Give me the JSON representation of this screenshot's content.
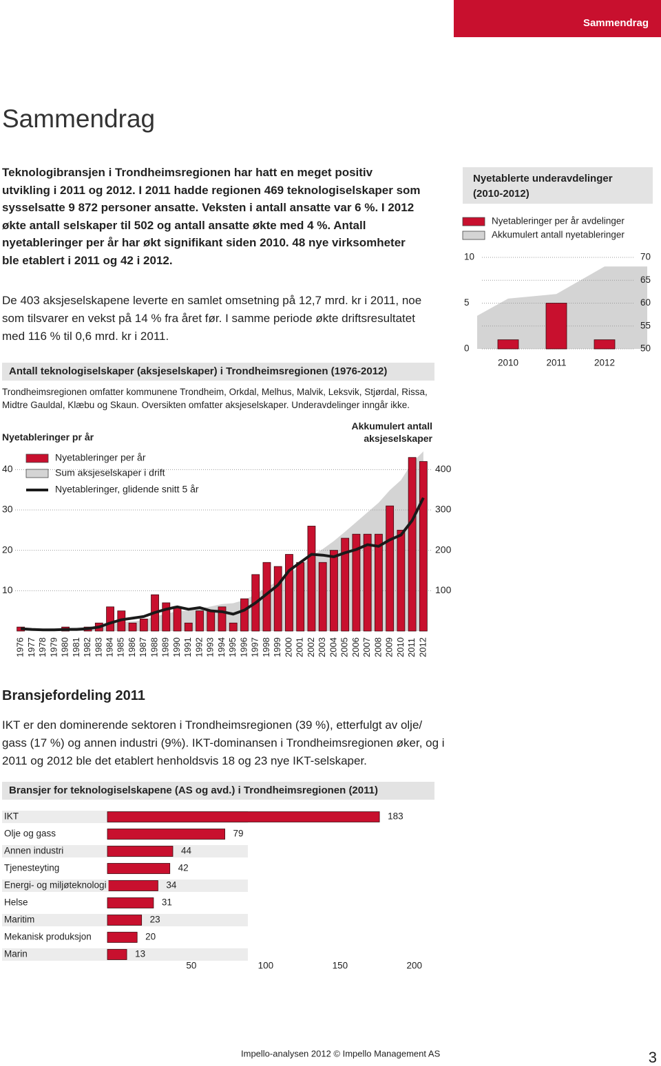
{
  "header": {
    "tab": "Sammendrag"
  },
  "title": "Sammendrag",
  "intro": "Teknologibransjen i Trondheimsregionen har hatt en meget positiv utvikling i 2011 og 2012. I 2011 hadde regionen 469 teknologiselskaper som sysselsatte 9 872 personer ansatte. Veksten i antall ansatte var 6 %. I 2012 økte antall selskaper til 502 og antall ansatte økte med 4 %. Antall nyetableringer per år har økt signifikant siden 2010. 48 nye virksomheter ble etablert i 2011 og 42 i 2012.",
  "paragraph": "De 403 aksjeselskapene leverte en samlet omsetning på 12,7 mrd. kr i 2011, noe som tilsvarer en vekst på 14 % fra året før. I samme periode økte driftsresultatet med 116 % til 0,6 mrd. kr i 2011.",
  "chart_data": [
    {
      "type": "combo",
      "title": "Antall teknologiselskaper (aksjeselskaper) i Trondheimsregionen (1976-2012)",
      "note": "Trondheimsregionen omfatter kommunene Trondheim, Orkdal, Melhus, Malvik, Leksvik, Stjørdal, Rissa, Midtre Gauldal, Klæbu og Skaun. Oversikten omfatter aksjeselskaper. Underavdelinger inngår ikke.",
      "ylabel": "Nyetableringer pr år",
      "y2label": "Akkumulert antall aksjeselskaper",
      "categories": [
        "1976",
        "1977",
        "1978",
        "1979",
        "1980",
        "1981",
        "1982",
        "1983",
        "1984",
        "1985",
        "1986",
        "1987",
        "1988",
        "1989",
        "1990",
        "1991",
        "1992",
        "1993",
        "1994",
        "1995",
        "1996",
        "1997",
        "1998",
        "1999",
        "2000",
        "2001",
        "2002",
        "2003",
        "2004",
        "2005",
        "2006",
        "2007",
        "2008",
        "2009",
        "2010",
        "2011",
        "2012"
      ],
      "series": [
        {
          "name": "Nyetableringer per år",
          "type": "bar",
          "color": "#c8102e",
          "values": [
            1,
            0,
            0,
            0,
            1,
            0,
            1,
            2,
            6,
            5,
            2,
            3,
            9,
            7,
            6,
            2,
            5,
            5,
            6,
            2,
            8,
            14,
            17,
            16,
            19,
            17,
            26,
            17,
            20,
            23,
            24,
            24,
            24,
            31,
            25,
            43,
            42
          ]
        },
        {
          "name": "Sum aksjeselskaper i drift",
          "type": "area",
          "axis": "y2",
          "color": "#d4d4d4",
          "values": [
            4,
            5,
            6,
            7,
            8,
            9,
            10,
            12,
            17,
            22,
            24,
            27,
            36,
            43,
            49,
            51,
            56,
            61,
            67,
            69,
            77,
            91,
            108,
            124,
            143,
            160,
            186,
            203,
            223,
            246,
            270,
            294,
            318,
            349,
            374,
            417,
            445
          ]
        },
        {
          "name": "Nyetableringer, glidende snitt 5 år",
          "type": "line",
          "color": "#1a1a1a",
          "values": [
            0.6,
            0.4,
            0.3,
            0.3,
            0.4,
            0.4,
            0.6,
            1,
            2,
            2.8,
            3.2,
            3.6,
            4.6,
            5.4,
            6,
            5.4,
            5.8,
            5,
            4.8,
            4.2,
            5.2,
            7,
            9.2,
            11.4,
            15,
            17,
            19,
            18.8,
            18.4,
            19.4,
            20.2,
            21.4,
            21,
            22.6,
            23.8,
            27.4,
            33
          ]
        }
      ],
      "ylim": [
        0,
        45
      ],
      "yticks": [
        10,
        20,
        30,
        40
      ],
      "y2lim": [
        0,
        450
      ],
      "y2ticks": [
        100,
        200,
        300,
        400
      ],
      "grid": true
    },
    {
      "type": "combo",
      "title": "Nyetablerte underavdelinger (2010-2012)",
      "categories": [
        "2010",
        "2011",
        "2012"
      ],
      "series": [
        {
          "name": "Nyetableringer per år avdelinger",
          "type": "bar",
          "color": "#c8102e",
          "values": [
            1,
            5,
            1
          ]
        },
        {
          "name": "Akkumulert antall nyetableringer",
          "type": "area",
          "axis": "y2",
          "color": "#d4d4d4",
          "values": [
            61,
            62,
            68
          ]
        }
      ],
      "ylim": [
        0,
        10
      ],
      "yticks": [
        0,
        5,
        10
      ],
      "y2lim": [
        50,
        70
      ],
      "y2ticks": [
        50,
        55,
        60,
        65,
        70
      ],
      "grid": true
    },
    {
      "type": "hbar",
      "title": "Bransjer for teknologiselskapene (AS og avd.) i Trondheimsregionen (2011)",
      "categories": [
        "IKT",
        "Olje og gass",
        "Annen industri",
        "Tjenesteyting",
        "Energi- og miljøteknologi",
        "Helse",
        "Maritim",
        "Mekanisk produksjon",
        "Marin"
      ],
      "values": [
        183,
        79,
        44,
        42,
        34,
        31,
        23,
        20,
        13
      ],
      "color": "#c8102e",
      "xlim": [
        0,
        200
      ],
      "xticks": [
        50,
        100,
        150,
        200
      ]
    }
  ],
  "section2": {
    "title": "Bransjefordeling 2011",
    "text": "IKT er den dominerende sektoren i Trondheimsregionen (39 %), etterfulgt av olje/ gass (17 %) og annen industri (9%). IKT-dominansen i Trondheimsregionen øker, og i 2011 og 2012 ble det etablert henholdsvis 18 og 23 nye IKT-selskaper."
  },
  "footer": {
    "text": "Impello-analysen 2012 © Impello Management AS",
    "page": "3"
  }
}
